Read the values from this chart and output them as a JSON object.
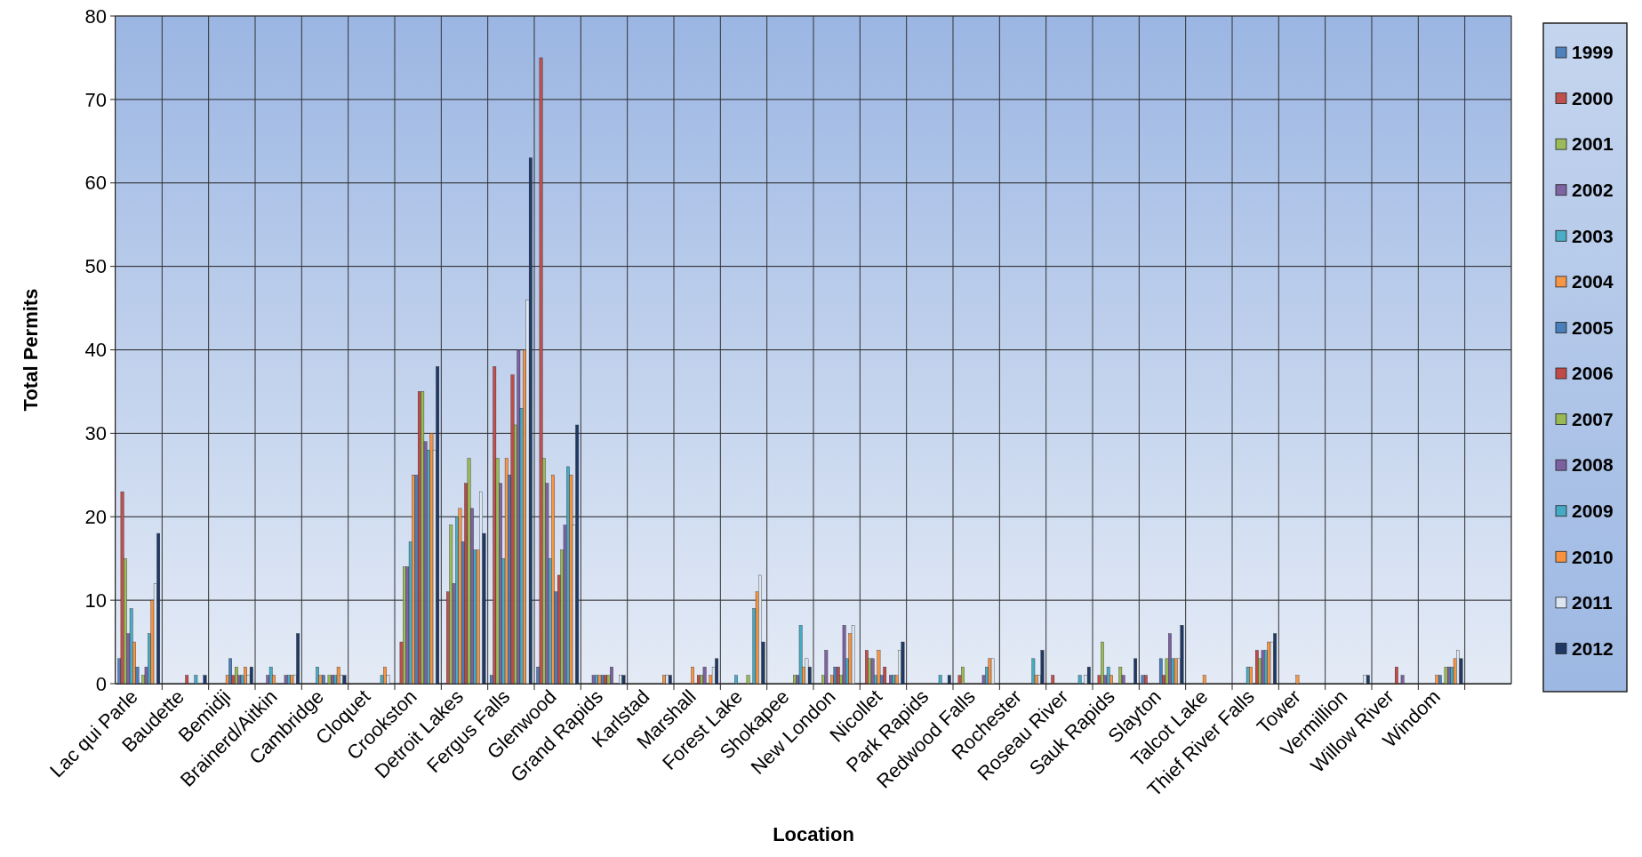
{
  "chart_data": {
    "type": "bar",
    "xlabel": "Location",
    "ylabel": "Total Permits",
    "categories": [
      "Lac qui Parle",
      "Baudette",
      "Bemidji",
      "Brainerd/Aitkin",
      "Cambridge",
      "Cloquet",
      "Crookston",
      "Detroit Lakes",
      "Fergus Falls",
      "Glenwood",
      "Grand Rapids",
      "Karlstad",
      "Marshall",
      "Forest Lake",
      "Shokapee",
      "New London",
      "Nicollet",
      "Park Rapids",
      "Redwood Falls",
      "Rochester",
      "Roseau River",
      "Sauk Rapids",
      "Slayton",
      "Talcot Lake",
      "Thief River Falls",
      "Tower",
      "Vermillion",
      "Willow River",
      "Windom",
      null
    ],
    "series": [
      {
        "name": "1999",
        "color": "#4f81bd",
        "values": [
          3,
          0,
          0,
          0,
          0,
          0,
          0,
          0,
          1,
          2,
          0,
          0,
          0,
          0,
          0,
          0,
          0,
          0,
          0,
          0,
          0,
          0,
          1,
          0,
          0,
          0,
          0,
          0,
          0,
          0
        ]
      },
      {
        "name": "2000",
        "color": "#c0504d",
        "values": [
          23,
          0,
          0,
          0,
          0,
          0,
          5,
          11,
          38,
          75,
          0,
          0,
          0,
          0,
          0,
          0,
          4,
          0,
          1,
          0,
          1,
          1,
          1,
          0,
          0,
          0,
          0,
          0,
          0,
          0
        ]
      },
      {
        "name": "2001",
        "color": "#9bbb59",
        "values": [
          15,
          0,
          0,
          0,
          0,
          0,
          14,
          19,
          27,
          27,
          0,
          0,
          0,
          0,
          0,
          1,
          3,
          0,
          2,
          0,
          0,
          5,
          0,
          0,
          0,
          0,
          0,
          0,
          0,
          0
        ]
      },
      {
        "name": "2002",
        "color": "#8064a2",
        "values": [
          6,
          0,
          0,
          1,
          0,
          0,
          14,
          12,
          24,
          24,
          1,
          0,
          0,
          0,
          0,
          4,
          3,
          0,
          0,
          0,
          0,
          1,
          0,
          0,
          0,
          0,
          0,
          0,
          0,
          0
        ]
      },
      {
        "name": "2003",
        "color": "#4bacc6",
        "values": [
          9,
          0,
          0,
          2,
          2,
          0,
          17,
          20,
          15,
          15,
          1,
          0,
          0,
          1,
          0,
          0,
          1,
          0,
          0,
          0,
          0,
          2,
          0,
          0,
          2,
          0,
          0,
          0,
          0,
          0
        ]
      },
      {
        "name": "2004",
        "color": "#f79646",
        "values": [
          5,
          0,
          1,
          1,
          1,
          0,
          25,
          21,
          27,
          25,
          1,
          0,
          2,
          0,
          0,
          1,
          4,
          0,
          0,
          0,
          0,
          1,
          0,
          1,
          2,
          1,
          0,
          0,
          1,
          0
        ]
      },
      {
        "name": "2005",
        "color": "#4a7ebb",
        "values": [
          2,
          0,
          3,
          0,
          1,
          0,
          25,
          17,
          25,
          11,
          1,
          0,
          0,
          0,
          0,
          2,
          1,
          0,
          0,
          0,
          0,
          0,
          3,
          0,
          0,
          0,
          0,
          0,
          1,
          0
        ]
      },
      {
        "name": "2006",
        "color": "#be4b48",
        "values": [
          0,
          1,
          1,
          0,
          0,
          0,
          35,
          24,
          37,
          13,
          1,
          0,
          1,
          0,
          0,
          2,
          2,
          0,
          0,
          0,
          0,
          0,
          1,
          0,
          4,
          0,
          0,
          2,
          0,
          0
        ]
      },
      {
        "name": "2007",
        "color": "#98b954",
        "values": [
          1,
          0,
          2,
          0,
          1,
          0,
          35,
          27,
          31,
          16,
          1,
          0,
          1,
          1,
          1,
          1,
          0,
          0,
          0,
          0,
          0,
          2,
          3,
          0,
          3,
          0,
          0,
          0,
          2,
          0
        ]
      },
      {
        "name": "2008",
        "color": "#7d60a0",
        "values": [
          2,
          0,
          1,
          1,
          1,
          0,
          29,
          21,
          40,
          19,
          2,
          0,
          2,
          0,
          1,
          7,
          1,
          0,
          1,
          0,
          0,
          1,
          6,
          0,
          4,
          0,
          0,
          1,
          2,
          0
        ]
      },
      {
        "name": "2009",
        "color": "#46aac5",
        "values": [
          6,
          1,
          1,
          1,
          1,
          1,
          28,
          16,
          33,
          26,
          0,
          0,
          0,
          9,
          7,
          3,
          1,
          1,
          2,
          3,
          1,
          0,
          3,
          0,
          4,
          0,
          0,
          0,
          2,
          0
        ]
      },
      {
        "name": "2010",
        "color": "#f69240",
        "values": [
          10,
          0,
          2,
          1,
          2,
          2,
          30,
          16,
          40,
          25,
          0,
          1,
          1,
          11,
          2,
          6,
          1,
          0,
          3,
          1,
          0,
          0,
          3,
          0,
          5,
          0,
          0,
          0,
          3,
          0
        ]
      },
      {
        "name": "2011",
        "color": "#dce6f2",
        "values": [
          12,
          0,
          1,
          1,
          1,
          1,
          28,
          23,
          46,
          19,
          1,
          1,
          2,
          13,
          3,
          7,
          4,
          0,
          3,
          1,
          1,
          0,
          3,
          0,
          5,
          0,
          1,
          0,
          4,
          0
        ]
      },
      {
        "name": "2012",
        "color": "#1f3864",
        "values": [
          18,
          1,
          2,
          6,
          1,
          0,
          38,
          18,
          63,
          31,
          1,
          1,
          3,
          5,
          2,
          0,
          5,
          1,
          0,
          4,
          2,
          3,
          7,
          0,
          6,
          0,
          1,
          0,
          3,
          0
        ]
      }
    ],
    "ylim": [
      0,
      80
    ],
    "yticks": [
      0,
      10,
      20,
      30,
      40,
      50,
      60,
      70,
      80
    ],
    "grid": true,
    "legend": "right"
  }
}
